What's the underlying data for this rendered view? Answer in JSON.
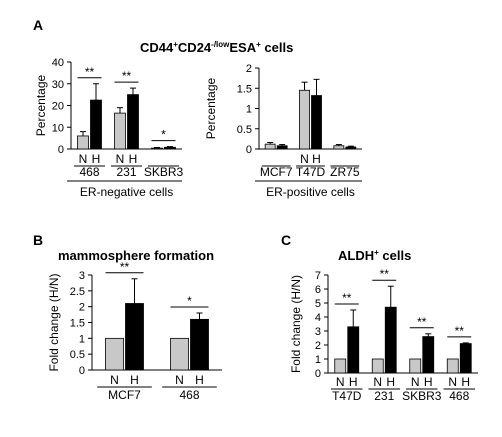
{
  "figure": {
    "panel_labels": [
      "A",
      "B",
      "C"
    ],
    "panel_a_title_parts": [
      "CD44",
      "+",
      "CD24",
      "-/low",
      "ESA",
      "+",
      " cells"
    ],
    "panel_b_title": "mammosphere formation",
    "panel_c_title_parts": [
      "ALDH",
      "+",
      " cells"
    ],
    "stat_marks": [
      "**",
      "*"
    ],
    "condition_labels": [
      "N",
      "H"
    ],
    "colors": {
      "normoxia": "#c8c8c8",
      "hypoxia": "#000000",
      "axis": "#000000"
    }
  },
  "chart_data": [
    {
      "id": "A-left",
      "type": "bar",
      "title": "",
      "ylabel": "Percentage",
      "xlabel": "ER-negative cells",
      "ylim": [
        0,
        40
      ],
      "yticks": [
        0,
        10,
        20,
        30,
        40
      ],
      "categories": [
        "468",
        "231",
        "SKBR3"
      ],
      "series": [
        {
          "name": "N",
          "values": [
            6,
            16.5,
            0.4
          ],
          "errors": [
            2,
            2.5,
            0.3
          ]
        },
        {
          "name": "H",
          "values": [
            22.5,
            25,
            0.8
          ],
          "errors": [
            7.5,
            3,
            0.3
          ]
        }
      ],
      "significance": [
        "**",
        "**",
        "*"
      ],
      "show_nh": [
        true,
        true,
        false
      ]
    },
    {
      "id": "A-right",
      "type": "bar",
      "title": "",
      "ylabel": "Percentage",
      "xlabel": "ER-positive cells",
      "ylim": [
        0,
        2
      ],
      "yticks": [
        0,
        0.5,
        1,
        1.5,
        2
      ],
      "categories": [
        "MCF7",
        "T47D",
        "ZR75"
      ],
      "series": [
        {
          "name": "N",
          "values": [
            0.12,
            1.45,
            0.08
          ],
          "errors": [
            0.04,
            0.2,
            0.03
          ]
        },
        {
          "name": "H",
          "values": [
            0.08,
            1.32,
            0.05
          ],
          "errors": [
            0.03,
            0.4,
            0.02
          ]
        }
      ],
      "significance": [
        "",
        "",
        ""
      ],
      "show_nh": [
        false,
        true,
        false
      ]
    },
    {
      "id": "B",
      "type": "bar",
      "title": "mammosphere formation",
      "ylabel": "Fold change (H/N)",
      "xlabel": "",
      "ylim": [
        0,
        3
      ],
      "yticks": [
        0,
        0.5,
        1,
        1.5,
        2,
        2.5,
        3
      ],
      "categories": [
        "MCF7",
        "468"
      ],
      "series": [
        {
          "name": "N",
          "values": [
            1,
            1
          ],
          "errors": [
            0,
            0
          ]
        },
        {
          "name": "H",
          "values": [
            2.1,
            1.6
          ],
          "errors": [
            0.78,
            0.2
          ]
        }
      ],
      "significance": [
        "**",
        "*"
      ],
      "show_nh": [
        true,
        true
      ]
    },
    {
      "id": "C",
      "type": "bar",
      "title": "ALDH+ cells",
      "ylabel": "Fold change (H/N)",
      "xlabel": "",
      "ylim": [
        0,
        7
      ],
      "yticks": [
        0,
        1,
        2,
        3,
        4,
        5,
        6,
        7
      ],
      "categories": [
        "T47D",
        "231",
        "SKBR3",
        "468"
      ],
      "series": [
        {
          "name": "N",
          "values": [
            1,
            1,
            1,
            1
          ],
          "errors": [
            0,
            0,
            0,
            0
          ]
        },
        {
          "name": "H",
          "values": [
            3.3,
            4.7,
            2.6,
            2.1
          ],
          "errors": [
            1.2,
            1.5,
            0.2,
            0.05
          ]
        }
      ],
      "significance": [
        "**",
        "**",
        "**",
        "**"
      ],
      "show_nh": [
        true,
        true,
        true,
        true
      ]
    }
  ]
}
